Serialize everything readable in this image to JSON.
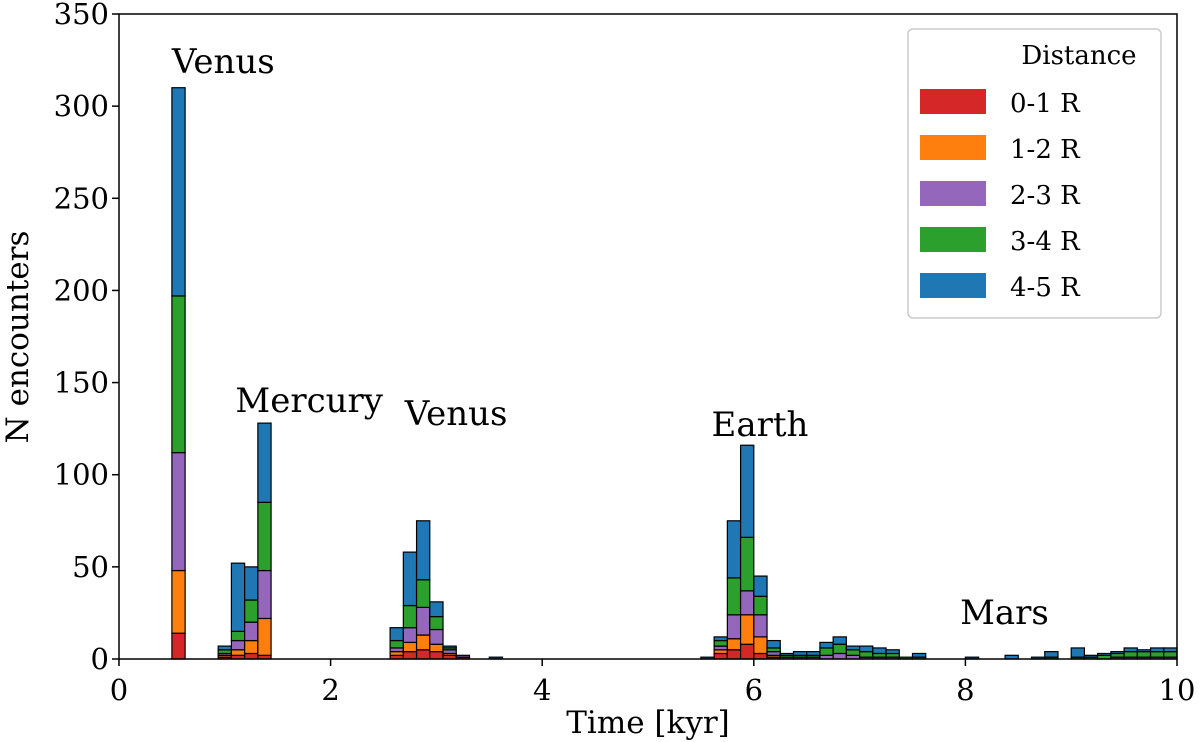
{
  "chart_data": {
    "type": "bar",
    "stacked": true,
    "xlabel": "Time [kyr]",
    "ylabel": "N encounters",
    "xlim": [
      0,
      10
    ],
    "ylim": [
      0,
      350
    ],
    "x_ticks": [
      0,
      2,
      4,
      6,
      8,
      10
    ],
    "y_ticks": [
      0,
      50,
      100,
      150,
      200,
      250,
      300,
      350
    ],
    "grid": false,
    "bin_width_kyr": 0.125,
    "legend": {
      "title": "Distance",
      "placement": "top-right"
    },
    "annotations": [
      {
        "text": "Venus",
        "x": 0.5,
        "y": 318
      },
      {
        "text": "Mercury",
        "x": 1.1,
        "y": 134
      },
      {
        "text": "Venus",
        "x": 2.7,
        "y": 127
      },
      {
        "text": "Earth",
        "x": 5.6,
        "y": 121
      },
      {
        "text": "Mars",
        "x": 7.95,
        "y": 19
      }
    ],
    "bins_start_kyr": [
      0.5,
      0.9375,
      1.0625,
      1.1875,
      1.3125,
      2.5625,
      2.6875,
      2.8125,
      2.9375,
      3.0625,
      3.1875,
      3.5,
      5.5,
      5.625,
      5.75,
      5.875,
      6.0,
      6.125,
      6.25,
      6.375,
      6.5,
      6.625,
      6.75,
      6.875,
      7.0,
      7.125,
      7.25,
      7.375,
      7.5,
      8.0,
      8.375,
      8.625,
      8.75,
      9.0,
      9.125,
      9.25,
      9.375,
      9.5,
      9.625,
      9.75,
      9.875
    ],
    "series": [
      {
        "name": "0-1 R",
        "color": "#d62728",
        "values": [
          14,
          1,
          2,
          3,
          2,
          2,
          4,
          5,
          4,
          2,
          1,
          0,
          0,
          3,
          5,
          8,
          3,
          1,
          0,
          0,
          0,
          0,
          0,
          0,
          0,
          0,
          0,
          0,
          0,
          0,
          0,
          0,
          0,
          0,
          0,
          0,
          0,
          0,
          0,
          0,
          0
        ]
      },
      {
        "name": "1-2 R",
        "color": "#ff7f0e",
        "values": [
          34,
          1,
          3,
          7,
          20,
          2,
          5,
          8,
          4,
          1,
          0,
          0,
          0,
          2,
          6,
          16,
          9,
          1,
          0,
          0,
          0,
          0,
          0,
          0,
          0,
          0,
          0,
          0,
          0,
          0,
          0,
          0,
          0,
          0,
          0,
          0,
          0,
          0,
          0,
          0,
          0
        ]
      },
      {
        "name": "2-3 R",
        "color": "#9467bd",
        "values": [
          64,
          1,
          5,
          10,
          26,
          2,
          8,
          15,
          8,
          2,
          1,
          0,
          0,
          2,
          13,
          13,
          12,
          2,
          1,
          1,
          1,
          2,
          3,
          2,
          1,
          1,
          1,
          0,
          0,
          0,
          0,
          0,
          0,
          0,
          0,
          0,
          1,
          1,
          1,
          1,
          1
        ]
      },
      {
        "name": "3-4 R",
        "color": "#2ca02c",
        "values": [
          85,
          2,
          5,
          12,
          37,
          4,
          12,
          15,
          7,
          1,
          0,
          0,
          0,
          3,
          20,
          29,
          10,
          2,
          1,
          1,
          1,
          4,
          5,
          3,
          3,
          2,
          2,
          1,
          1,
          0,
          0,
          0,
          1,
          1,
          1,
          2,
          2,
          3,
          3,
          3,
          3
        ]
      },
      {
        "name": "4-5 R",
        "color": "#1f77b4",
        "values": [
          113,
          2,
          37,
          18,
          43,
          7,
          29,
          32,
          8,
          1,
          0,
          1,
          1,
          2,
          31,
          50,
          11,
          4,
          1,
          2,
          2,
          3,
          4,
          2,
          3,
          3,
          2,
          0,
          2,
          1,
          2,
          1,
          3,
          5,
          1,
          1,
          1,
          2,
          1,
          2,
          2
        ]
      }
    ]
  }
}
